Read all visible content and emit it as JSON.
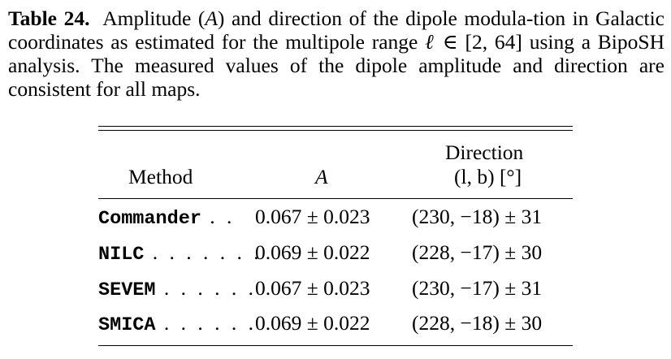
{
  "caption": {
    "label": "Table 24.",
    "text_a": "Amplitude (",
    "var_a": "A",
    "text_b": ") and direction of the dipole modula-tion in Galactic coordinates as estimated for the multipole range ",
    "var_ell": "ℓ",
    "text_c": " ∈ [2, 64] using a BipoSH analysis. The measured values of the dipole amplitude and direction are consistent for all maps."
  },
  "table": {
    "headers": {
      "method": "Method",
      "amplitude": "A",
      "direction_top": "Direction",
      "direction_bottom": "(l, b) [°]"
    },
    "rows": [
      {
        "method": "Commander",
        "dots": " . .",
        "amplitude": "0.067 ± 0.023",
        "direction": "(230, −18) ± 31"
      },
      {
        "method": "NILC",
        "dots": " . . . . . . .",
        "amplitude": "0.069 ± 0.022",
        "direction": "(228, −17) ± 30"
      },
      {
        "method": "SEVEM",
        "dots": " . . . . . .",
        "amplitude": "0.067 ± 0.023",
        "direction": "(230, −17) ± 31"
      },
      {
        "method": "SMICA",
        "dots": " . . . . . .",
        "amplitude": "0.069 ± 0.022",
        "direction": "(228, −18) ± 30"
      }
    ]
  }
}
